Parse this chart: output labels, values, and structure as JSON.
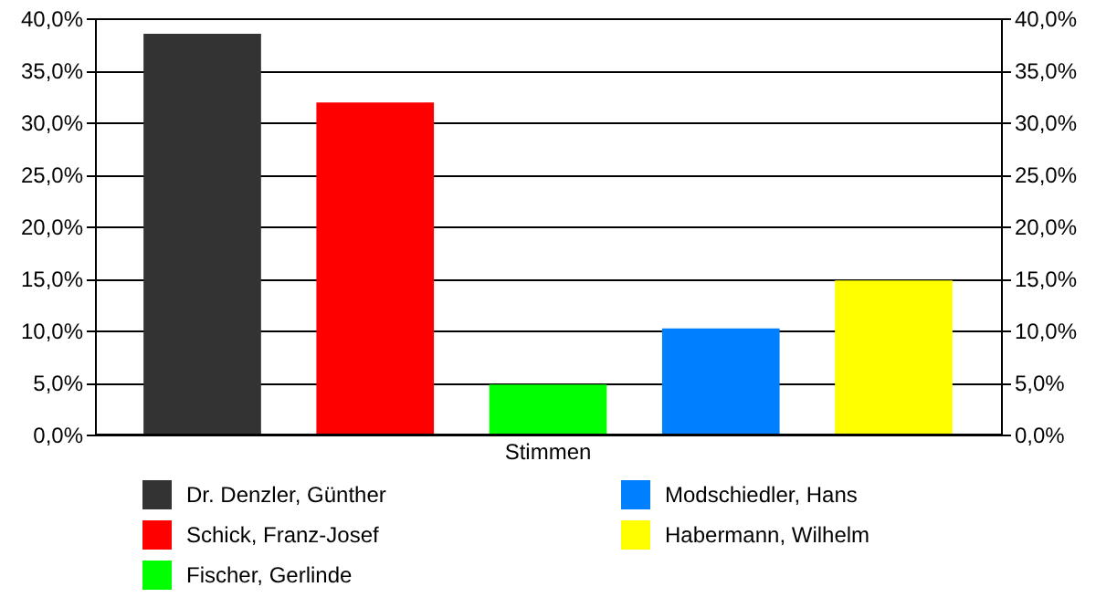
{
  "chart_data": {
    "type": "bar",
    "categories": [
      "Stimmen"
    ],
    "series": [
      {
        "name": "Dr. Denzler, Günther",
        "color": "#333333",
        "values": [
          38.5
        ]
      },
      {
        "name": "Schick, Franz-Josef",
        "color": "#ff0000",
        "values": [
          31.9
        ]
      },
      {
        "name": "Fischer, Gerlinde",
        "color": "#00ff00",
        "values": [
          4.8
        ]
      },
      {
        "name": "Modschiedler, Hans",
        "color": "#0080ff",
        "values": [
          10.2
        ]
      },
      {
        "name": "Habermann, Wilhelm",
        "color": "#ffff00",
        "values": [
          14.8
        ]
      }
    ],
    "ylim": [
      0,
      40
    ],
    "yticks": [
      {
        "value": 0,
        "label": "0,0%"
      },
      {
        "value": 5,
        "label": "5,0%"
      },
      {
        "value": 10,
        "label": "10,0%"
      },
      {
        "value": 15,
        "label": "15,0%"
      },
      {
        "value": 20,
        "label": "20,0%"
      },
      {
        "value": 25,
        "label": "25,0%"
      },
      {
        "value": 30,
        "label": "30,0%"
      },
      {
        "value": 35,
        "label": "35,0%"
      },
      {
        "value": 40,
        "label": "40,0%"
      }
    ],
    "grid": "y",
    "legend": "bottom"
  }
}
